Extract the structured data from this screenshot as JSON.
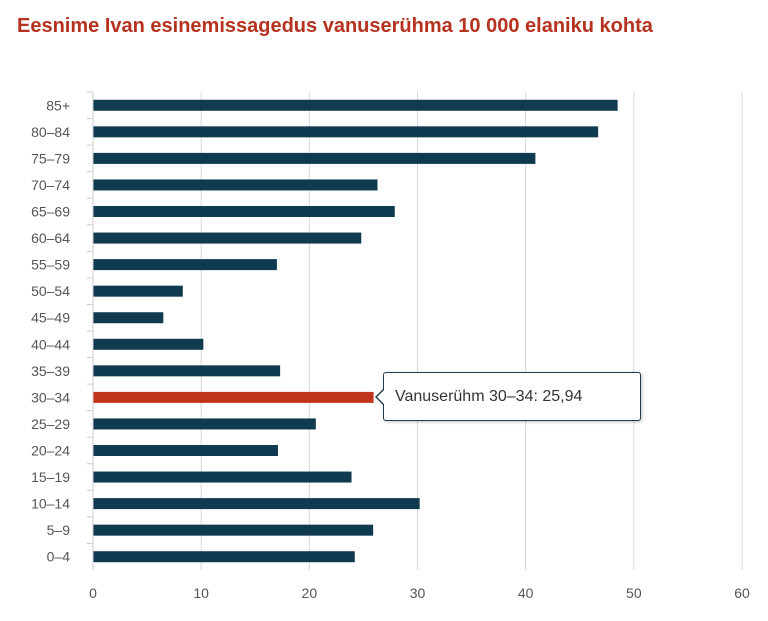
{
  "chart_data": {
    "type": "bar",
    "orientation": "horizontal",
    "title": "Eesnime Ivan esinemissagedus vanuserühma 10 000 elaniku kohta",
    "categories": [
      "85+",
      "80–84",
      "75–79",
      "70–74",
      "65–69",
      "60–64",
      "55–59",
      "50–54",
      "45–49",
      "40–44",
      "35–39",
      "30–34",
      "25–29",
      "20–24",
      "15–19",
      "10–14",
      "5–9",
      "0–4"
    ],
    "values": [
      48.5,
      46.7,
      40.9,
      26.3,
      27.9,
      24.8,
      17.0,
      8.3,
      6.5,
      10.2,
      17.3,
      25.94,
      20.6,
      17.1,
      23.9,
      30.2,
      25.9,
      24.2
    ],
    "xlim": [
      0,
      60
    ],
    "xticks": [
      0,
      10,
      20,
      30,
      40,
      50,
      60
    ],
    "xlabel": "",
    "ylabel": "",
    "grid": true,
    "bar_color": "#0f3a4f",
    "highlight_color": "#c0341d",
    "highlight_index": 11,
    "tooltip": {
      "label": "Vanuserühm 30–34: 25,94"
    }
  }
}
